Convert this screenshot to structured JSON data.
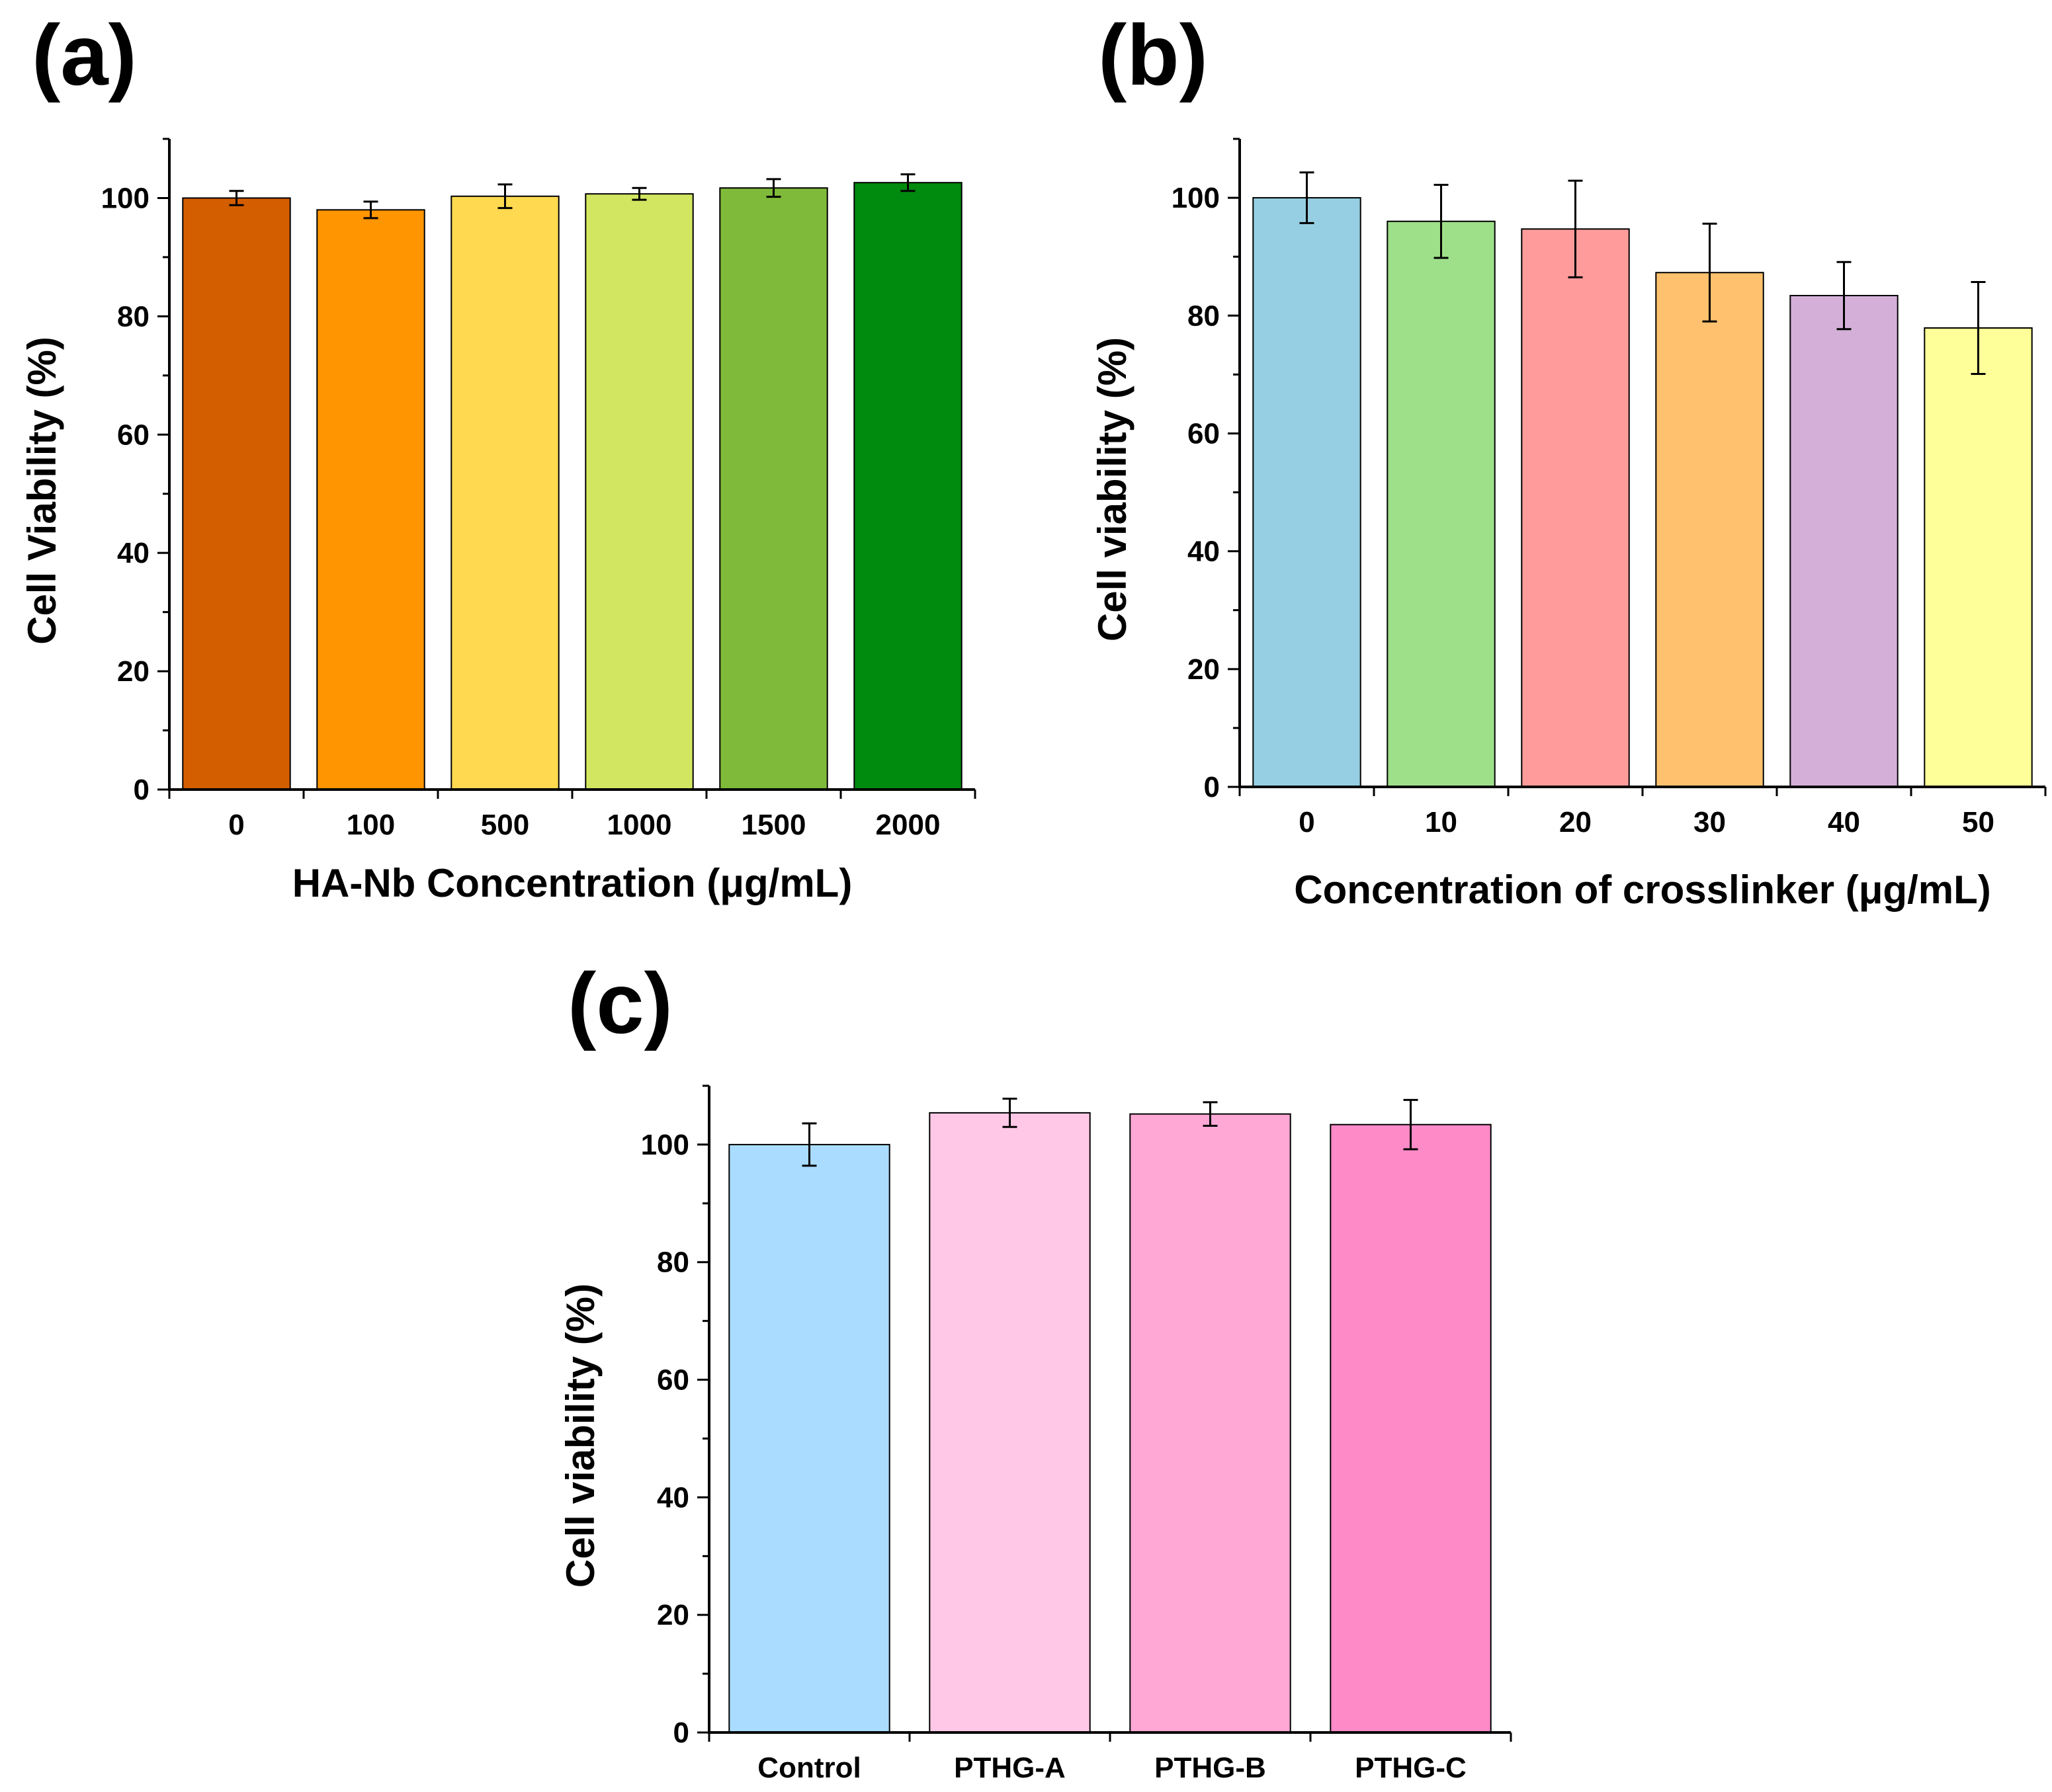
{
  "chart_data": [
    {
      "type": "bar",
      "panel_label": "(a)",
      "categories": [
        "0",
        "100",
        "500",
        "1000",
        "1500",
        "2000"
      ],
      "values": [
        100.0,
        98.0,
        100.3,
        100.7,
        101.7,
        102.6
      ],
      "errors": [
        1.2,
        1.4,
        2.0,
        1.0,
        1.5,
        1.4
      ],
      "colors": [
        "#d35e00",
        "#ff9500",
        "#ffd94f",
        "#d3e661",
        "#7fba3a",
        "#008a0e"
      ],
      "xlabel": "HA-Nb Concentration (μg/mL)",
      "ylabel": "Cell Viability (%)",
      "ylim": [
        0,
        110
      ],
      "yticks": [
        0,
        20,
        40,
        60,
        80,
        100
      ],
      "grid": false
    },
    {
      "type": "bar",
      "panel_label": "(b)",
      "categories": [
        "0",
        "10",
        "20",
        "30",
        "40",
        "50"
      ],
      "values": [
        100.0,
        96.0,
        94.7,
        87.3,
        83.4,
        77.9
      ],
      "errors": [
        4.3,
        6.2,
        8.2,
        8.3,
        5.7,
        7.8
      ],
      "colors": [
        "#96cfe3",
        "#9ee08a",
        "#ff9b9b",
        "#ffc16e",
        "#d4b0d8",
        "#ffff99"
      ],
      "xlabel": "Concentration of crosslinker (μg/mL)",
      "ylabel": "Cell viability (%)",
      "ylim": [
        0,
        110
      ],
      "yticks": [
        0,
        20,
        40,
        60,
        80,
        100
      ],
      "grid": false
    },
    {
      "type": "bar",
      "panel_label": "(c)",
      "categories": [
        "Control",
        "PTHG-A",
        "PTHG-B",
        "PTHG-C"
      ],
      "values": [
        100.0,
        105.4,
        105.2,
        103.4
      ],
      "errors": [
        3.6,
        2.4,
        2.0,
        4.2
      ],
      "colors": [
        "#aadcff",
        "#ffc8e6",
        "#ffa8d6",
        "#ff8ac8"
      ],
      "xlabel": "",
      "ylabel": "Cell viability (%)",
      "ylim": [
        0,
        110
      ],
      "yticks": [
        0,
        20,
        40,
        60,
        80,
        100
      ],
      "grid": false
    }
  ]
}
